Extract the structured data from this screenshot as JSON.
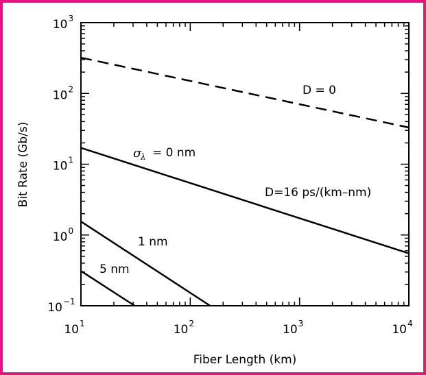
{
  "frame_color": "#e8137f",
  "chart_data": {
    "type": "line",
    "xlabel": "Fiber Length (km)",
    "ylabel": "Bit Rate (Gb/s)",
    "xscale": "log",
    "yscale": "log",
    "xlim": [
      10,
      10000
    ],
    "ylim": [
      0.1,
      1000
    ],
    "x_ticks": [
      {
        "base": "10",
        "exp": "1"
      },
      {
        "base": "10",
        "exp": "2"
      },
      {
        "base": "10",
        "exp": "3"
      },
      {
        "base": "10",
        "exp": "4"
      }
    ],
    "y_ticks": [
      {
        "base": "10",
        "exp": "−1"
      },
      {
        "base": "10",
        "exp": "0"
      },
      {
        "base": "10",
        "exp": "1"
      },
      {
        "base": "10",
        "exp": "2"
      },
      {
        "base": "10",
        "exp": "3"
      }
    ],
    "series": [
      {
        "label": "D = 0",
        "style": "dashed",
        "points": [
          [
            10,
            320
          ],
          [
            10000,
            33
          ]
        ]
      },
      {
        "label": "D=16 ps/(km–nm)",
        "style": "solid",
        "points": [
          [
            10,
            17
          ],
          [
            10000,
            0.55
          ]
        ]
      },
      {
        "label": "1 nm",
        "style": "solid",
        "points": [
          [
            10,
            1.55
          ],
          [
            152,
            0.1
          ]
        ]
      },
      {
        "label": "5 nm",
        "style": "solid",
        "points": [
          [
            10,
            0.31
          ],
          [
            31,
            0.1
          ]
        ]
      }
    ],
    "annotations": {
      "d_zero": "D = 0",
      "sigma_symbol": "σ",
      "sigma_sub": "λ",
      "sigma_value": "= 0 nm",
      "d_sixteen": "D=16 ps/(km–nm)",
      "one_nm": "1 nm",
      "five_nm": "5 nm"
    }
  }
}
